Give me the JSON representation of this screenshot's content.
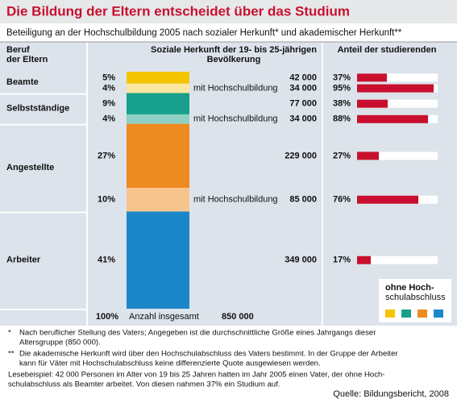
{
  "chart_data": {
    "type": "infographic",
    "title": "Die Bildung der Eltern entscheidet über das Studium",
    "subtitle": "Beteiligung an der Hochschulbildung 2005 nach sozialer Herkunft* und akademischer Herkunft**",
    "headers": {
      "group": [
        "Beruf",
        "der Eltern"
      ],
      "origin": [
        "Soziale Herkunft der 19- bis 25-jährigen",
        "Bevölkerung"
      ],
      "rate": [
        "Anteil der studierenden"
      ]
    },
    "rate_xlim": [
      0,
      100
    ],
    "rate_color": "#c8102e",
    "groups": [
      {
        "name": "Beamte",
        "segments": [
          {
            "share": 5,
            "share_label": "5%",
            "count": 42000,
            "count_label": "42 000",
            "rate": 37,
            "rate_label": "37%",
            "color": "#f5c400"
          },
          {
            "share": 4,
            "share_label": "4%",
            "count": 34000,
            "count_label": "34 000",
            "rate": 95,
            "rate_label": "95%",
            "color": "#fbe7a0",
            "note": "mit Hochschulbildung"
          }
        ]
      },
      {
        "name": "Selbstständige",
        "segments": [
          {
            "share": 9,
            "share_label": "9%",
            "count": 77000,
            "count_label": "77 000",
            "rate": 38,
            "rate_label": "38%",
            "color": "#16a08c"
          },
          {
            "share": 4,
            "share_label": "4%",
            "count": 34000,
            "count_label": "34 000",
            "rate": 88,
            "rate_label": "88%",
            "color": "#8fd0c4",
            "note": "mit Hochschulbildung"
          }
        ]
      },
      {
        "name": "Angestellte",
        "segments": [
          {
            "share": 27,
            "share_label": "27%",
            "count": 229000,
            "count_label": "229 000",
            "rate": 27,
            "rate_label": "27%",
            "color": "#ee8a22"
          },
          {
            "share": 10,
            "share_label": "10%",
            "count": 85000,
            "count_label": "85 000",
            "rate": 76,
            "rate_label": "76%",
            "color": "#f8c48e",
            "note": "mit Hochschulbildung"
          }
        ]
      },
      {
        "name": "Arbeiter",
        "segments": [
          {
            "share": 41,
            "share_label": "41%",
            "count": 349000,
            "count_label": "349 000",
            "rate": 17,
            "rate_label": "17%",
            "color": "#1b87c9"
          }
        ]
      }
    ],
    "total": {
      "share": 100,
      "share_label": "100%",
      "label": "Anzahl insgesamt",
      "count": 850000,
      "count_label": "850 000"
    },
    "legend": {
      "lines": [
        "ohne Hoch-",
        "schulabschluss"
      ]
    },
    "footnotes": [
      [
        "*",
        "Nach beruflicher Stellung des Vaters; Angegeben ist die durchschnittliche Größe eines Jahrgangs dieser",
        "Altersgruppe (850 000)."
      ],
      [
        "**",
        "Die akademische Herkunft wird über den Hochschulabschluss des Vaters bestimmt. In der Gruppe der Arbeiter",
        "kann für Väter mit Hochschulabschluss keine differenzierte Quote ausgewiesen werden."
      ]
    ],
    "example": [
      "Lesebeispiel: 42 000 Personen im Alter von 19 bis 25 Jahren hatten im Jahr 2005 einen Vater, der ohne Hoch-",
      "schulabschluss als Beamter arbeitet. Von diesen nahmen 37% ein Studium auf."
    ],
    "source": "Quelle: Bildungsbericht, 2008"
  }
}
